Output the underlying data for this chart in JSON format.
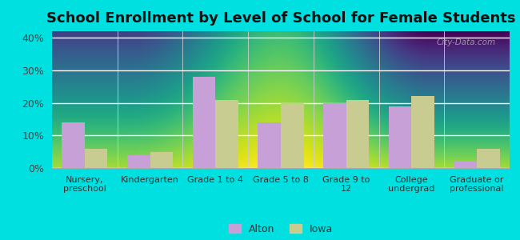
{
  "title": "School Enrollment by Level of School for Female Students",
  "categories": [
    "Nursery,\npreschool",
    "Kindergarten",
    "Grade 1 to 4",
    "Grade 5 to 8",
    "Grade 9 to\n12",
    "College\nundergrad",
    "Graduate or\nprofessional"
  ],
  "alton_values": [
    14,
    4,
    28,
    14,
    20,
    19,
    2
  ],
  "iowa_values": [
    6,
    5,
    21,
    20,
    21,
    22,
    6
  ],
  "alton_color": "#c8a0d8",
  "iowa_color": "#c8cc90",
  "background_color": "#00e0e0",
  "plot_bg_color": "#e8f5e0",
  "title_fontsize": 13,
  "ylim": [
    0,
    42
  ],
  "yticks": [
    0,
    10,
    20,
    30,
    40
  ],
  "ytick_labels": [
    "0%",
    "10%",
    "20%",
    "30%",
    "40%"
  ],
  "legend_labels": [
    "Alton",
    "Iowa"
  ],
  "bar_width": 0.35,
  "watermark": "City-Data.com"
}
